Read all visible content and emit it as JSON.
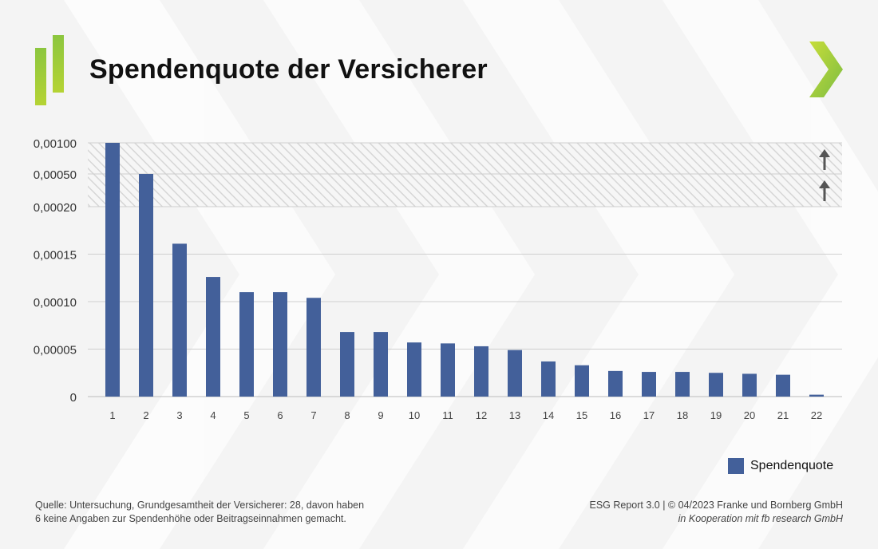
{
  "title": "Spendenquote der Versicherer",
  "chart_data": {
    "type": "bar",
    "title": "Spendenquote der Versicherer",
    "categories": [
      "1",
      "2",
      "3",
      "4",
      "5",
      "6",
      "7",
      "8",
      "9",
      "10",
      "11",
      "12",
      "13",
      "14",
      "15",
      "16",
      "17",
      "18",
      "19",
      "20",
      "21",
      "22"
    ],
    "series": [
      {
        "name": "Spendenquote",
        "color": "#43609a",
        "values": [
          0.001,
          0.0005,
          0.000161,
          0.000126,
          0.00011,
          0.00011,
          0.000104,
          6.8e-05,
          6.8e-05,
          5.7e-05,
          5.6e-05,
          5.3e-05,
          4.9e-05,
          3.7e-05,
          3.3e-05,
          2.7e-05,
          2.6e-05,
          2.6e-05,
          2.5e-05,
          2.4e-05,
          2.3e-05,
          2e-06
        ]
      }
    ],
    "y_ticks_linear": [
      "0",
      "0,00005",
      "0,00010",
      "0,00015",
      "0,00020"
    ],
    "y_ticks_broken": [
      "0,00050",
      "0,00100"
    ],
    "ylim": [
      0,
      0.0002
    ],
    "axis_break": "hatched band above 0,00020 with up-arrows; values 0,00050 and 0,00100 shown in compressed bands",
    "grid": true,
    "legend_position": "bottom-right"
  },
  "legend": {
    "label": "Spendenquote"
  },
  "footer": {
    "source_line1": "Quelle: Untersuchung, Grundgesamtheit der Versicherer: 28, davon haben",
    "source_line2": "6 keine Angaben zur Spendenhöhe oder Beitragseinnahmen gemacht.",
    "credit_line1": "ESG Report 3.0 | © 04/2023 Franke und Bornberg GmbH",
    "credit_line2": "in Kooperation mit fb research GmbH"
  },
  "colors": {
    "bar": "#43609a",
    "accent_green": "#8cc63f",
    "background": "#f4f4f4"
  },
  "icons": [
    "logo-bars-icon",
    "chevron-right-icon",
    "arrow-up-icon"
  ]
}
